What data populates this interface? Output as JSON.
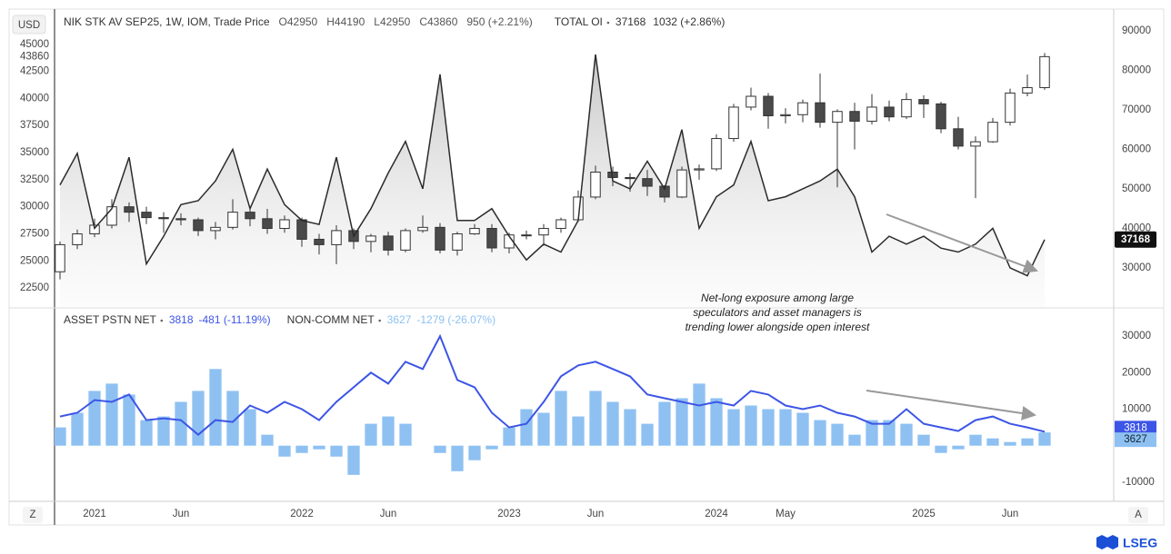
{
  "chart_data": [
    {
      "type": "candlestick",
      "title": "NIK STK AV SEP25, 1W, IOM, Trade Price",
      "quote": [
        "O42950",
        "H44190",
        "L42950",
        "C43860",
        "950 (+2.21%)"
      ],
      "currency": "USD",
      "x": [
        "2020-11",
        "2020-12",
        "2021-01",
        "2021-02",
        "2021-03",
        "2021-04",
        "2021-05",
        "2021-06",
        "2021-07",
        "2021-08",
        "2021-09",
        "2021-10",
        "2021-11",
        "2021-12",
        "2022-01",
        "2022-02",
        "2022-03",
        "2022-04",
        "2022-05",
        "2022-06",
        "2022-07",
        "2022-08",
        "2022-09",
        "2022-10",
        "2022-11",
        "2022-12",
        "2023-01",
        "2023-02",
        "2023-03",
        "2023-04",
        "2023-05",
        "2023-06",
        "2023-07",
        "2023-08",
        "2023-09",
        "2023-10",
        "2023-11",
        "2023-12",
        "2024-01",
        "2024-02",
        "2024-03",
        "2024-04",
        "2024-05",
        "2024-06",
        "2024-07",
        "2024-08",
        "2024-09",
        "2024-10",
        "2024-11",
        "2024-12",
        "2025-01",
        "2025-02",
        "2025-03",
        "2025-04",
        "2025-05",
        "2025-06",
        "2025-07",
        "2025-08"
      ],
      "xlim": [
        "2020-11",
        "2025-12"
      ],
      "open": [
        24000,
        26500,
        27500,
        28300,
        30000,
        29500,
        29000,
        28900,
        28800,
        27800,
        28100,
        29500,
        28900,
        28000,
        28800,
        27000,
        26500,
        27800,
        26800,
        27300,
        26000,
        27800,
        28100,
        26000,
        27500,
        28000,
        26200,
        27400,
        27400,
        28000,
        28800,
        30900,
        33200,
        32700,
        32600,
        31900,
        30900,
        33400,
        33500,
        36300,
        39200,
        40200,
        38400,
        38500,
        39600,
        37800,
        38800,
        37900,
        39200,
        38300,
        39900,
        39500,
        37200,
        35600,
        36000,
        37800,
        40500,
        41000
      ],
      "high": [
        26800,
        27900,
        28900,
        30700,
        30400,
        30000,
        29500,
        29400,
        29000,
        28600,
        30700,
        29800,
        29800,
        29200,
        29000,
        27500,
        28300,
        28000,
        27500,
        27700,
        28000,
        29200,
        28500,
        27700,
        28400,
        28400,
        27600,
        27800,
        28400,
        29000,
        31500,
        33800,
        33700,
        33100,
        33400,
        32000,
        33700,
        33900,
        36700,
        39500,
        41000,
        40500,
        39100,
        39900,
        42300,
        39000,
        39600,
        40400,
        39800,
        40500,
        40300,
        39700,
        38300,
        36500,
        38200,
        40900,
        42200,
        44190
      ],
      "low": [
        23300,
        26100,
        27200,
        28000,
        28600,
        28400,
        27600,
        28300,
        27300,
        27000,
        27900,
        28200,
        27500,
        27600,
        26300,
        25600,
        24700,
        26100,
        25800,
        25500,
        25800,
        27600,
        25700,
        25500,
        27400,
        25800,
        25700,
        27000,
        26400,
        27600,
        28600,
        30700,
        31900,
        31400,
        31000,
        30400,
        30800,
        32500,
        33300,
        36000,
        38900,
        37200,
        37700,
        37800,
        37300,
        31800,
        35300,
        37600,
        37900,
        38100,
        38200,
        36800,
        35300,
        30800,
        35900,
        37500,
        40200,
        40800
      ],
      "close": [
        26500,
        27500,
        28300,
        30000,
        29500,
        29000,
        28900,
        28800,
        27800,
        28100,
        29500,
        28900,
        28000,
        28800,
        27000,
        26500,
        27800,
        26800,
        27300,
        26000,
        27800,
        28100,
        26000,
        27500,
        28000,
        26200,
        27400,
        27400,
        28000,
        28800,
        30900,
        33200,
        32700,
        32600,
        31900,
        30900,
        33400,
        33500,
        36300,
        39200,
        40200,
        38400,
        38500,
        39600,
        37800,
        38800,
        37900,
        39200,
        38300,
        39900,
        39500,
        37200,
        35600,
        36000,
        37800,
        40500,
        41000,
        43860
      ],
      "up_color": "#ffffff",
      "down_color": "#4a4a4a",
      "candle_stroke": "#333333",
      "ylim": [
        20750,
        48250
      ],
      "yticks": [
        22500,
        25000,
        27500,
        30000,
        32500,
        35000,
        37500,
        40000,
        42500,
        45000
      ],
      "y2lim": [
        20100,
        95500
      ],
      "y2ticks": [
        30000,
        40000,
        50000,
        60000,
        70000,
        80000,
        90000
      ],
      "series": [
        {
          "name": "TOTAL OI",
          "axis": "y2",
          "color": "#2b2b2b",
          "stat": [
            "37168",
            "1032 (+2.86%)"
          ],
          "values": [
            51000,
            59000,
            40000,
            45000,
            58000,
            31000,
            38000,
            46000,
            47000,
            52000,
            60000,
            45000,
            55000,
            46000,
            42000,
            41000,
            58000,
            38000,
            45000,
            54000,
            62000,
            50000,
            79000,
            42000,
            42000,
            45000,
            38000,
            32000,
            36000,
            34000,
            42000,
            84000,
            52000,
            50000,
            57000,
            50000,
            65000,
            40000,
            48000,
            51000,
            62000,
            47000,
            48000,
            50000,
            52000,
            55000,
            48000,
            34000,
            38000,
            36000,
            38000,
            35000,
            34000,
            36000,
            40000,
            30000,
            28000,
            37168
          ]
        }
      ]
    },
    {
      "type": "bar",
      "x": [
        "2020-11",
        "2020-12",
        "2021-01",
        "2021-02",
        "2021-03",
        "2021-04",
        "2021-05",
        "2021-06",
        "2021-07",
        "2021-08",
        "2021-09",
        "2021-10",
        "2021-11",
        "2021-12",
        "2022-01",
        "2022-02",
        "2022-03",
        "2022-04",
        "2022-05",
        "2022-06",
        "2022-07",
        "2022-08",
        "2022-09",
        "2022-10",
        "2022-11",
        "2022-12",
        "2023-01",
        "2023-02",
        "2023-03",
        "2023-04",
        "2023-05",
        "2023-06",
        "2023-07",
        "2023-08",
        "2023-09",
        "2023-10",
        "2023-11",
        "2023-12",
        "2024-01",
        "2024-02",
        "2024-03",
        "2024-04",
        "2024-05",
        "2024-06",
        "2024-07",
        "2024-08",
        "2024-09",
        "2024-10",
        "2024-11",
        "2024-12",
        "2025-01",
        "2025-02",
        "2025-03",
        "2025-04",
        "2025-05",
        "2025-06",
        "2025-07",
        "2025-08"
      ],
      "xlim": [
        "2020-11",
        "2025-12"
      ],
      "xticks": [
        {
          "value": "2021-01",
          "label": "2021"
        },
        {
          "value": "2021-06",
          "label": "Jun"
        },
        {
          "value": "2022-01",
          "label": "2022"
        },
        {
          "value": "2022-06",
          "label": "Jun"
        },
        {
          "value": "2023-01",
          "label": "2023"
        },
        {
          "value": "2023-06",
          "label": "Jun"
        },
        {
          "value": "2024-01",
          "label": "2024"
        },
        {
          "value": "2024-05",
          "label": "May"
        },
        {
          "value": "2025-01",
          "label": "2025"
        },
        {
          "value": "2025-06",
          "label": "Jun"
        }
      ],
      "ylim": [
        -15000,
        37500
      ],
      "yticks": [
        -10000,
        10000,
        20000,
        30000
      ],
      "series": [
        {
          "name": "ASSET PSTN NET",
          "type": "line",
          "color": "#3d55e6",
          "stat": [
            "3818",
            "-481 (-11.19%)"
          ],
          "values": [
            8000,
            9000,
            12500,
            12000,
            14000,
            7000,
            7500,
            7000,
            3000,
            7000,
            6500,
            11000,
            9000,
            12000,
            10000,
            7000,
            12000,
            16000,
            20000,
            17000,
            23000,
            21000,
            30000,
            18000,
            16000,
            9000,
            5000,
            6000,
            12000,
            19000,
            22000,
            23000,
            21000,
            19000,
            14000,
            13000,
            12000,
            11000,
            12000,
            11000,
            15000,
            14000,
            11000,
            10000,
            11000,
            9000,
            8000,
            6000,
            6000,
            10000,
            6000,
            5000,
            4000,
            7000,
            8000,
            6000,
            5000,
            3818
          ]
        },
        {
          "name": "NON-COMM NET",
          "type": "bar",
          "color": "#8ec1f2",
          "stat": [
            "3627",
            "-1279 (-26.07%)"
          ],
          "values": [
            5000,
            9000,
            15000,
            17000,
            14000,
            7000,
            8000,
            12000,
            15000,
            21000,
            15000,
            10000,
            3000,
            -3000,
            -2000,
            -1000,
            -3000,
            -8000,
            6000,
            8000,
            6000,
            0,
            -2000,
            -7000,
            -4000,
            -1000,
            5000,
            10000,
            9000,
            15000,
            8000,
            15000,
            12000,
            10000,
            6000,
            12000,
            13000,
            17000,
            13000,
            10000,
            11000,
            10000,
            10000,
            9000,
            7000,
            6000,
            3000,
            7000,
            7000,
            6000,
            3000,
            -2000,
            -1000,
            3000,
            2000,
            1000,
            2000,
            3627
          ]
        }
      ],
      "annotation": [
        "Net-long exposure among large",
        "speculators and asset managers is",
        "trending lower alongside open interest"
      ]
    }
  ],
  "buttons": [
    "Z",
    "A"
  ],
  "brand": "LSEG"
}
